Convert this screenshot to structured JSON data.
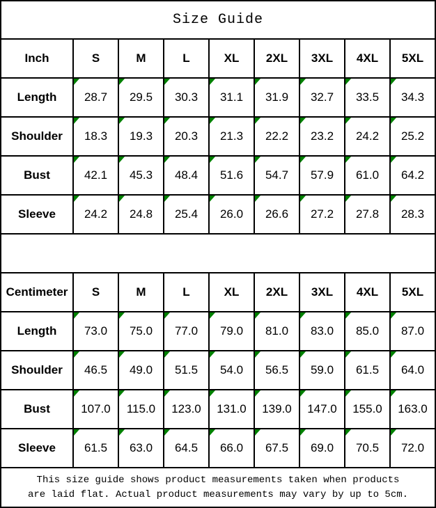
{
  "title": "Size Guide",
  "colors": {
    "marker_green": "#008000",
    "border_black": "#000000",
    "background": "#ffffff"
  },
  "tables": [
    {
      "unit": "Inch",
      "sizes": [
        "S",
        "M",
        "L",
        "XL",
        "2XL",
        "3XL",
        "4XL",
        "5XL"
      ],
      "rows": [
        {
          "label": "Length",
          "values": [
            "28.7",
            "29.5",
            "30.3",
            "31.1",
            "31.9",
            "32.7",
            "33.5",
            "34.3"
          ]
        },
        {
          "label": "Shoulder",
          "values": [
            "18.3",
            "19.3",
            "20.3",
            "21.3",
            "22.2",
            "23.2",
            "24.2",
            "25.2"
          ]
        },
        {
          "label": "Bust",
          "values": [
            "42.1",
            "45.3",
            "48.4",
            "51.6",
            "54.7",
            "57.9",
            "61.0",
            "64.2"
          ]
        },
        {
          "label": "Sleeve",
          "values": [
            "24.2",
            "24.8",
            "25.4",
            "26.0",
            "26.6",
            "27.2",
            "27.8",
            "28.3"
          ]
        }
      ]
    },
    {
      "unit": "Centimeter",
      "sizes": [
        "S",
        "M",
        "L",
        "XL",
        "2XL",
        "3XL",
        "4XL",
        "5XL"
      ],
      "rows": [
        {
          "label": "Length",
          "values": [
            "73.0",
            "75.0",
            "77.0",
            "79.0",
            "81.0",
            "83.0",
            "85.0",
            "87.0"
          ]
        },
        {
          "label": "Shoulder",
          "values": [
            "46.5",
            "49.0",
            "51.5",
            "54.0",
            "56.5",
            "59.0",
            "61.5",
            "64.0"
          ]
        },
        {
          "label": "Bust",
          "values": [
            "107.0",
            "115.0",
            "123.0",
            "131.0",
            "139.0",
            "147.0",
            "155.0",
            "163.0"
          ]
        },
        {
          "label": "Sleeve",
          "values": [
            "61.5",
            "63.0",
            "64.5",
            "66.0",
            "67.5",
            "69.0",
            "70.5",
            "72.0"
          ]
        }
      ]
    }
  ],
  "footer": {
    "line1": "This size guide shows product measurements taken when products",
    "line2": "are laid flat. Actual product measurements may vary by up to 5cm."
  },
  "chart_data": [
    {
      "type": "table",
      "title": "Size Guide (Inch)",
      "columns": [
        "Inch",
        "S",
        "M",
        "L",
        "XL",
        "2XL",
        "3XL",
        "4XL",
        "5XL"
      ],
      "rows": [
        [
          "Length",
          28.7,
          29.5,
          30.3,
          31.1,
          31.9,
          32.7,
          33.5,
          34.3
        ],
        [
          "Shoulder",
          18.3,
          19.3,
          20.3,
          21.3,
          22.2,
          23.2,
          24.2,
          25.2
        ],
        [
          "Bust",
          42.1,
          45.3,
          48.4,
          51.6,
          54.7,
          57.9,
          61.0,
          64.2
        ],
        [
          "Sleeve",
          24.2,
          24.8,
          25.4,
          26.0,
          26.6,
          27.2,
          27.8,
          28.3
        ]
      ]
    },
    {
      "type": "table",
      "title": "Size Guide (Centimeter)",
      "columns": [
        "Centimeter",
        "S",
        "M",
        "L",
        "XL",
        "2XL",
        "3XL",
        "4XL",
        "5XL"
      ],
      "rows": [
        [
          "Length",
          73.0,
          75.0,
          77.0,
          79.0,
          81.0,
          83.0,
          85.0,
          87.0
        ],
        [
          "Shoulder",
          46.5,
          49.0,
          51.5,
          54.0,
          56.5,
          59.0,
          61.5,
          64.0
        ],
        [
          "Bust",
          107.0,
          115.0,
          123.0,
          131.0,
          139.0,
          147.0,
          155.0,
          163.0
        ],
        [
          "Sleeve",
          61.5,
          63.0,
          64.5,
          66.0,
          67.5,
          69.0,
          70.5,
          72.0
        ]
      ]
    }
  ]
}
